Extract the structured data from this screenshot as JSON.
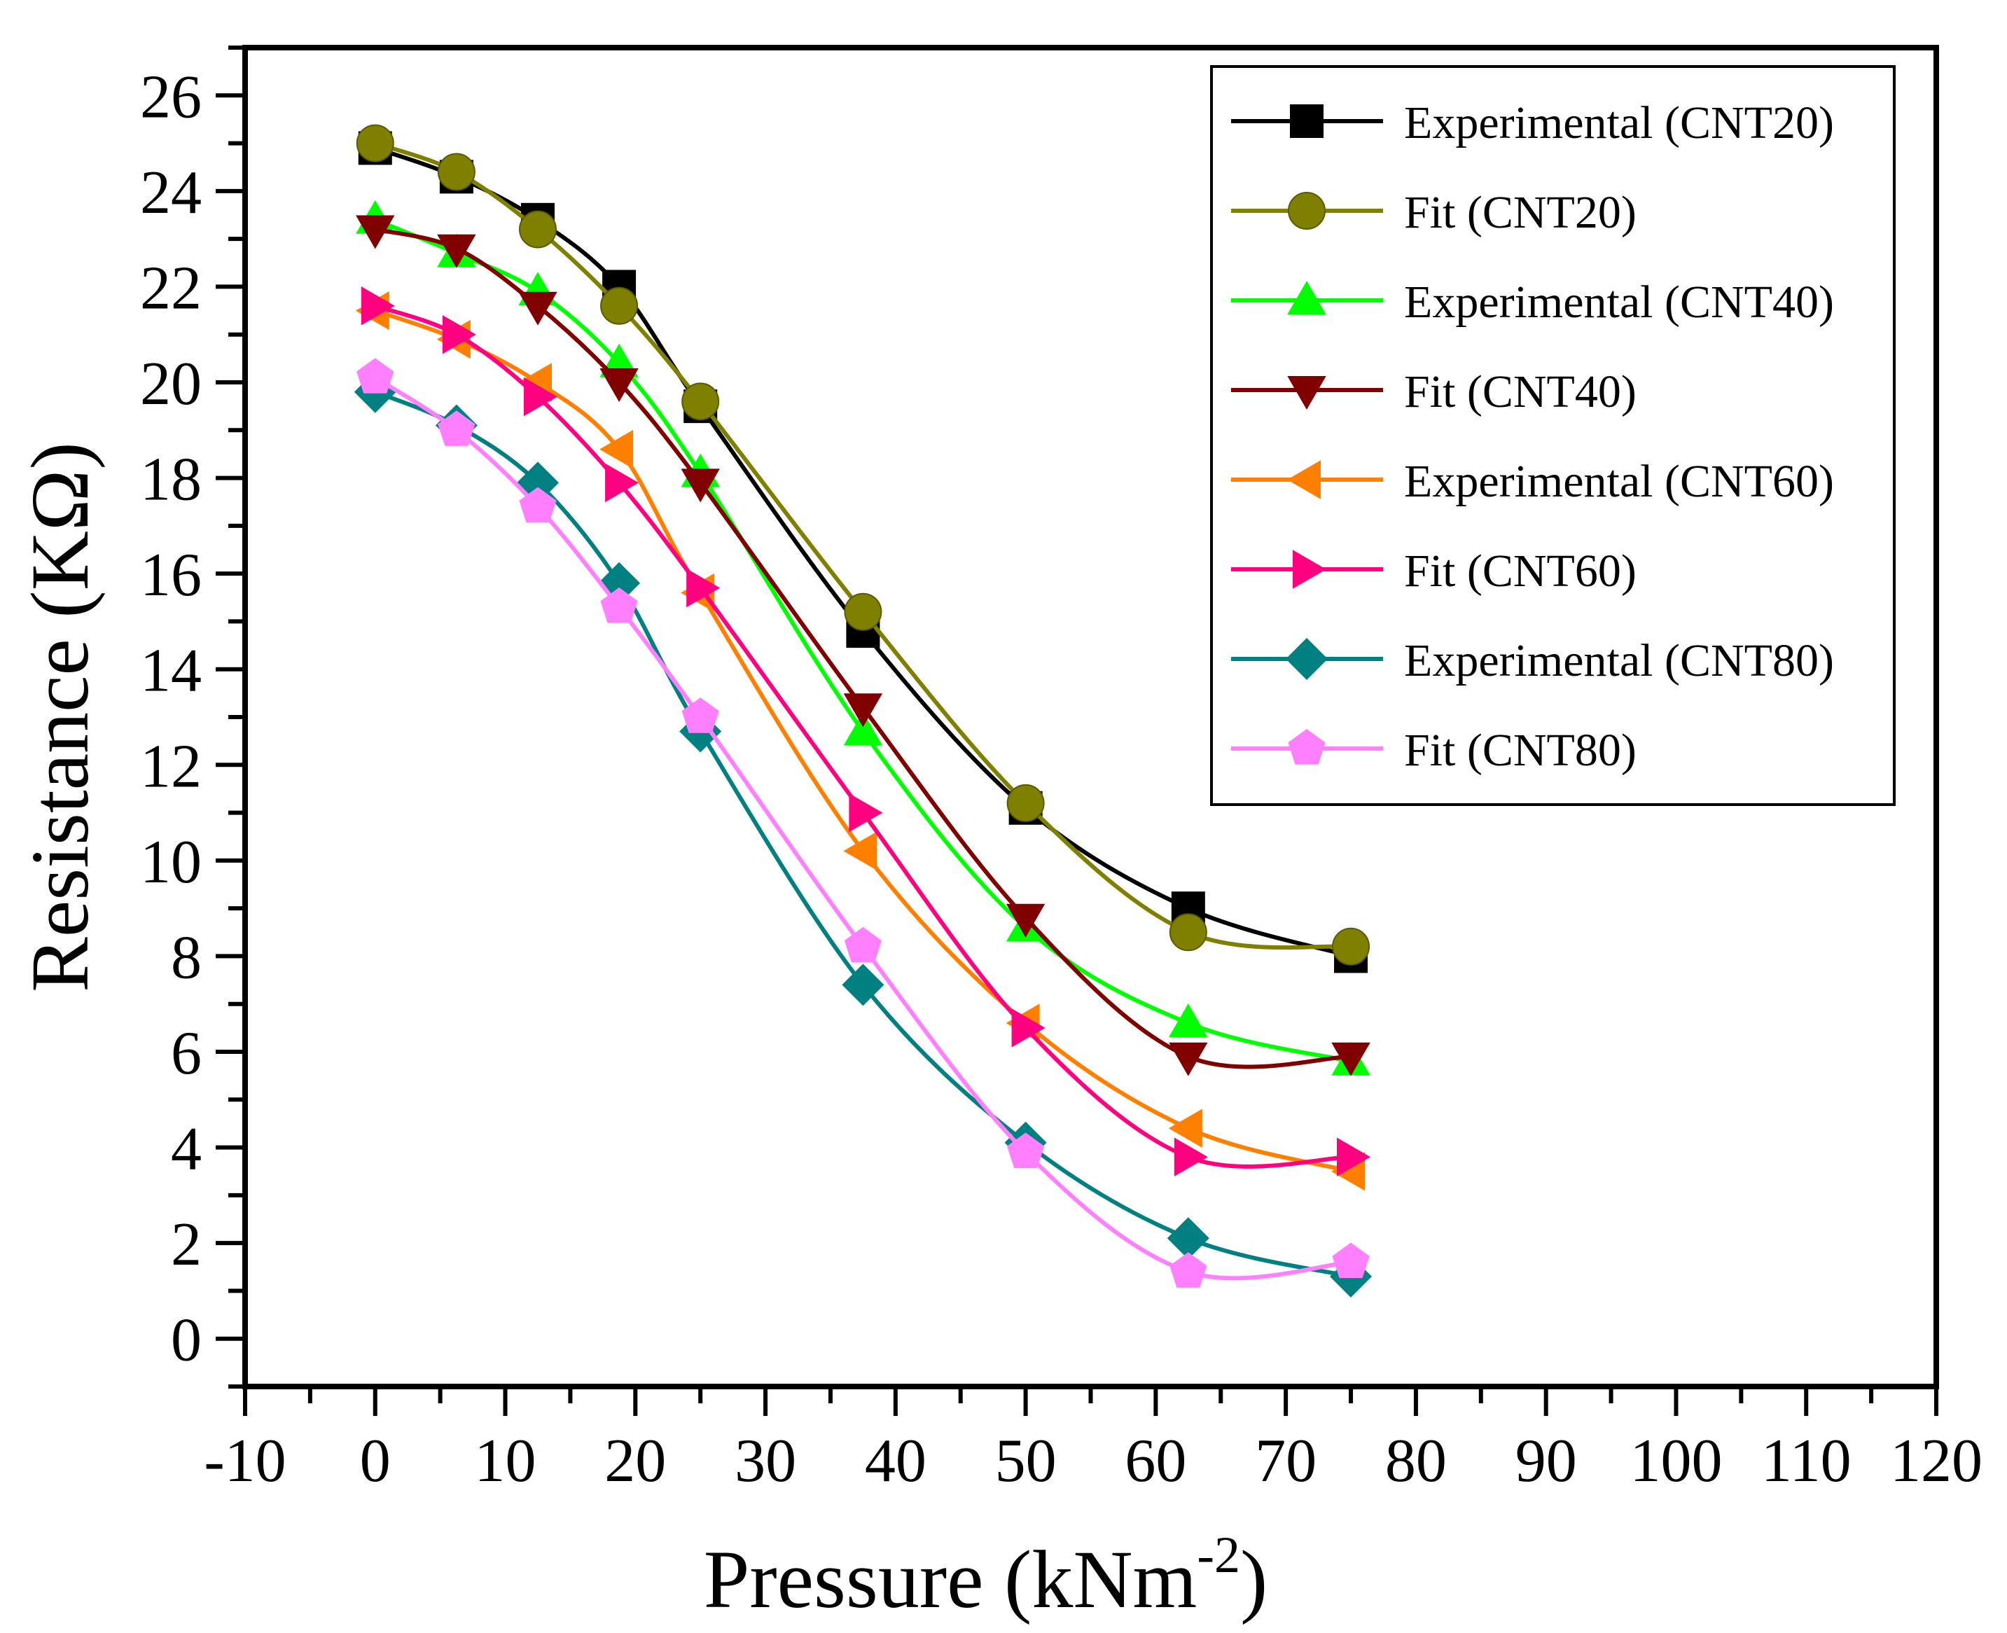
{
  "chart_data": {
    "type": "line",
    "title": "",
    "xlabel": "Pressure (kNm",
    "xlabel_sup": "-2",
    "xlabel_close": ")",
    "ylabel": "Resistance (KΩ)",
    "xlim": [
      -10,
      120
    ],
    "ylim": [
      -1,
      27
    ],
    "xticks": [
      -10,
      0,
      10,
      20,
      30,
      40,
      50,
      60,
      70,
      80,
      90,
      100,
      110,
      120
    ],
    "yticks": [
      0,
      2,
      4,
      6,
      8,
      10,
      12,
      14,
      16,
      18,
      20,
      22,
      24,
      26
    ],
    "grid": false,
    "legend_position": "top-right",
    "x": [
      0,
      6.25,
      12.5,
      18.75,
      25,
      37.5,
      50,
      62.5,
      75
    ],
    "series": [
      {
        "name": "Experimental (CNT20)",
        "color": "#000000",
        "marker": "square",
        "values": [
          24.9,
          24.3,
          23.4,
          22.0,
          19.5,
          14.8,
          11.1,
          9.0,
          8.0
        ]
      },
      {
        "name": "Fit (CNT20)",
        "color": "#808000",
        "marker": "circle",
        "values": [
          25.0,
          24.4,
          23.2,
          21.6,
          19.6,
          15.2,
          11.2,
          8.5,
          8.2
        ]
      },
      {
        "name": "Experimental (CNT40)",
        "color": "#00ff00",
        "marker": "triangle-up",
        "values": [
          23.4,
          22.7,
          21.9,
          20.4,
          18.1,
          12.7,
          8.6,
          6.6,
          5.8
        ]
      },
      {
        "name": "Fit (CNT40)",
        "color": "#800000",
        "marker": "triangle-down",
        "values": [
          23.2,
          22.8,
          21.6,
          20.0,
          17.9,
          13.2,
          8.8,
          5.9,
          5.9
        ]
      },
      {
        "name": "Experimental (CNT60)",
        "color": "#ff8000",
        "marker": "triangle-left",
        "values": [
          21.5,
          20.9,
          20.0,
          18.6,
          15.6,
          10.2,
          6.6,
          4.4,
          3.5
        ]
      },
      {
        "name": "Fit (CNT60)",
        "color": "#ff0080",
        "marker": "triangle-right",
        "values": [
          21.6,
          21.0,
          19.7,
          17.9,
          15.7,
          11.0,
          6.5,
          3.8,
          3.8
        ]
      },
      {
        "name": "Experimental (CNT80)",
        "color": "#008080",
        "marker": "diamond",
        "values": [
          19.8,
          19.1,
          17.9,
          15.8,
          12.7,
          7.4,
          4.1,
          2.1,
          1.3
        ]
      },
      {
        "name": "Fit (CNT80)",
        "color": "#ff80ff",
        "marker": "pentagon",
        "values": [
          20.1,
          19.0,
          17.4,
          15.3,
          13.0,
          8.2,
          3.9,
          1.4,
          1.6
        ]
      }
    ]
  }
}
